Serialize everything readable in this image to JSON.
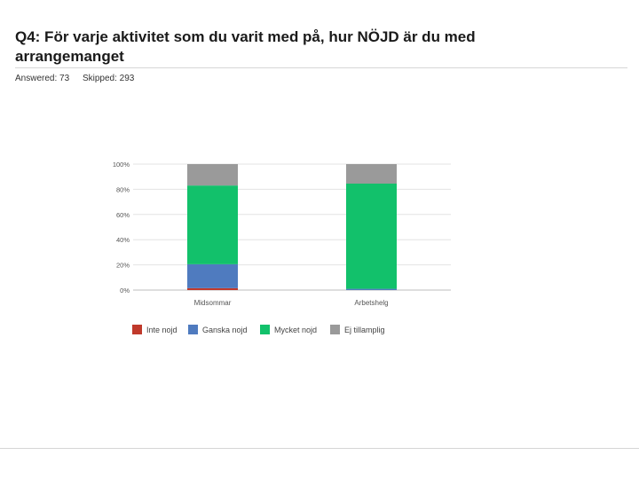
{
  "page": {
    "title": "Q4: För varje aktivitet som du varit med på, hur NÖJD är du med arrangemanget",
    "answered": "Answered: 73",
    "skipped": "Skipped: 293"
  },
  "chart_data": {
    "type": "bar",
    "stacked": true,
    "categories": [
      "Midsommar",
      "Arbetshelg"
    ],
    "series": [
      {
        "name": "Inte nojd",
        "color": "#c0392b",
        "values": [
          1.5,
          0
        ]
      },
      {
        "name": "Ganska nojd",
        "color": "#4f7bbf",
        "values": [
          19,
          1
        ]
      },
      {
        "name": "Mycket nojd",
        "color": "#12c16b",
        "values": [
          62.5,
          83.5
        ]
      },
      {
        "name": "Ej tillamplig",
        "color": "#9a9a9a",
        "values": [
          17,
          15.5
        ]
      }
    ],
    "y_ticks": [
      "0%",
      "20%",
      "40%",
      "60%",
      "80%",
      "100%"
    ],
    "ylim": [
      0,
      100
    ],
    "grid": true,
    "legend": "bottom"
  }
}
